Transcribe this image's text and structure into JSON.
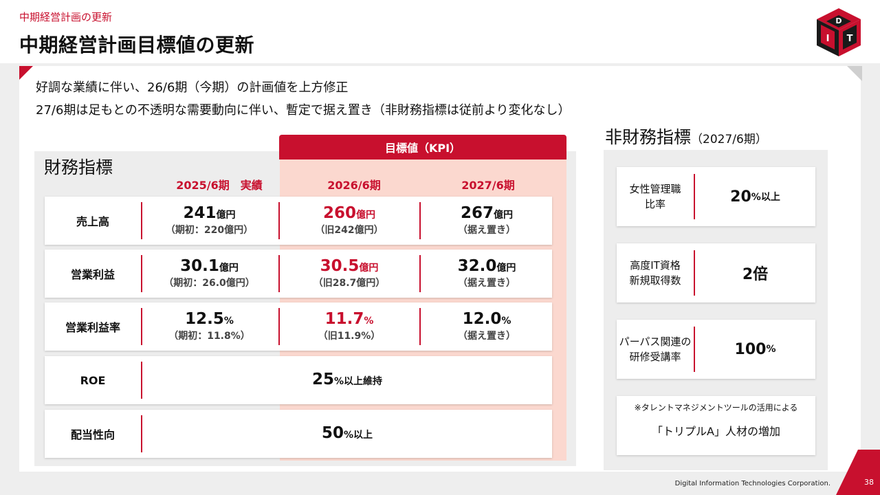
{
  "header": {
    "breadcrumb": "中期経営計画の更新",
    "title": "中期経営計画目標値の更新"
  },
  "intro": {
    "line1": "好調な業績に伴い、26/6期（今期）の計画値を上方修正",
    "line2": "27/6期は足もとの不透明な需要動向に伴い、暫定で据え置き（非財務指標は従前より変化なし）"
  },
  "financial": {
    "title": "財務指標",
    "kpi_header": "目標値（KPI）",
    "columns": [
      "2025/6期　実績",
      "2026/6期",
      "2027/6期"
    ],
    "rows": [
      {
        "label": "売上高",
        "cells": [
          {
            "value": "241",
            "unit": "億円",
            "sub": "（期初：220億円）"
          },
          {
            "value": "260",
            "unit": "億円",
            "sub": "（旧242億円）"
          },
          {
            "value": "267",
            "unit": "億円",
            "sub": "（据え置き）"
          }
        ]
      },
      {
        "label": "営業利益",
        "cells": [
          {
            "value": "30.1",
            "unit": "億円",
            "sub": "（期初：26.0億円）"
          },
          {
            "value": "30.5",
            "unit": "億円",
            "sub": "（旧28.7億円）"
          },
          {
            "value": "32.0",
            "unit": "億円",
            "sub": "（据え置き）"
          }
        ]
      },
      {
        "label": "営業利益率",
        "cells": [
          {
            "value": "12.5",
            "unit": "%",
            "sub": "（期初：11.8%）"
          },
          {
            "value": "11.7",
            "unit": "%",
            "sub": "（旧11.9%）"
          },
          {
            "value": "12.0",
            "unit": "%",
            "sub": "（据え置き）"
          }
        ]
      },
      {
        "label": "ROE",
        "value": "25",
        "unit": "%以上維持"
      },
      {
        "label": "配当性向",
        "value": "50",
        "unit": "%以上"
      }
    ]
  },
  "non_financial": {
    "title": "非財務指標",
    "title_sub": "（2027/6期）",
    "items": [
      {
        "label_line1": "女性管理職",
        "label_line2": "比率",
        "value": "20",
        "unit": "%以上"
      },
      {
        "label_line1": "高度IT資格",
        "label_line2": "新規取得数",
        "value": "2倍",
        "unit": ""
      },
      {
        "label_line1": "パーパス関連の",
        "label_line2": "研修受講率",
        "value": "100",
        "unit": "%"
      }
    ],
    "note_line1": "※タレントマネジメントツールの活用による",
    "note_line2": "「トリプルA」人材の増加"
  },
  "footer": {
    "corporation": "Digital Information Technologies Corporation.",
    "page": "38"
  },
  "logo": {
    "letters": [
      "D",
      "I",
      "T"
    ],
    "icon": "dit-cube-logo"
  },
  "colors": {
    "accent": "#c8102e",
    "kpi_bg": "#fbd8cf",
    "panel_bg": "#ededed"
  }
}
